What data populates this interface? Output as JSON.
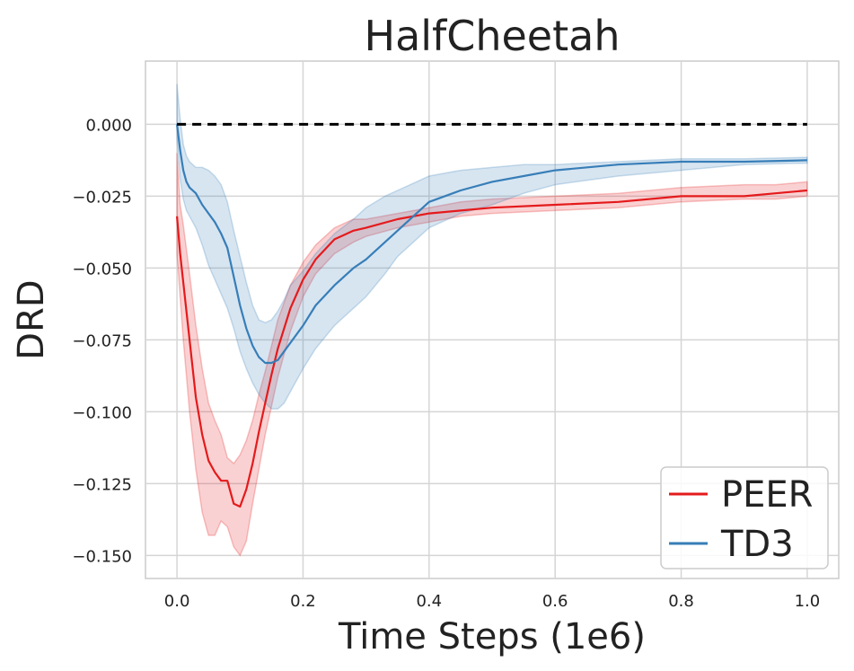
{
  "chart_data": {
    "type": "line",
    "title": "HalfCheetah",
    "xlabel": "Time Steps (1e6)",
    "ylabel": "DRD",
    "xlim": [
      -0.05,
      1.05
    ],
    "ylim": [
      -0.158,
      0.022
    ],
    "xticks": [
      0.0,
      0.2,
      0.4,
      0.6,
      0.8,
      1.0
    ],
    "xtick_labels": [
      "0.0",
      "0.2",
      "0.4",
      "0.6",
      "0.8",
      "1.0"
    ],
    "yticks": [
      0.0,
      -0.025,
      -0.05,
      -0.075,
      -0.1,
      -0.125,
      -0.15
    ],
    "ytick_labels": [
      "0.000",
      "−0.025",
      "−0.050",
      "−0.075",
      "−0.100",
      "−0.125",
      "−0.150"
    ],
    "grid": true,
    "legend_position": "bottom-right",
    "reference_line": {
      "y": 0.0,
      "x_range": [
        0.0,
        1.0
      ],
      "style": "dashed",
      "color": "#000000"
    },
    "series": [
      {
        "name": "PEER",
        "color": "#e41a1c",
        "x": [
          0.0,
          0.005,
          0.01,
          0.02,
          0.03,
          0.04,
          0.05,
          0.06,
          0.07,
          0.08,
          0.09,
          0.1,
          0.11,
          0.12,
          0.13,
          0.14,
          0.15,
          0.16,
          0.18,
          0.2,
          0.22,
          0.25,
          0.28,
          0.3,
          0.35,
          0.4,
          0.45,
          0.5,
          0.6,
          0.7,
          0.8,
          0.9,
          0.95,
          1.0
        ],
        "mean": [
          -0.032,
          -0.045,
          -0.055,
          -0.075,
          -0.095,
          -0.108,
          -0.117,
          -0.121,
          -0.124,
          -0.124,
          -0.132,
          -0.133,
          -0.127,
          -0.118,
          -0.107,
          -0.097,
          -0.087,
          -0.078,
          -0.064,
          -0.054,
          -0.047,
          -0.04,
          -0.037,
          -0.036,
          -0.033,
          -0.031,
          -0.03,
          -0.029,
          -0.028,
          -0.027,
          -0.025,
          -0.025,
          -0.024,
          -0.023
        ],
        "lower": [
          -0.045,
          -0.06,
          -0.075,
          -0.1,
          -0.12,
          -0.135,
          -0.143,
          -0.143,
          -0.138,
          -0.14,
          -0.147,
          -0.15,
          -0.145,
          -0.132,
          -0.12,
          -0.108,
          -0.098,
          -0.088,
          -0.072,
          -0.06,
          -0.052,
          -0.045,
          -0.041,
          -0.039,
          -0.036,
          -0.034,
          -0.032,
          -0.031,
          -0.03,
          -0.029,
          -0.027,
          -0.026,
          -0.026,
          -0.025
        ],
        "upper": [
          -0.01,
          -0.028,
          -0.035,
          -0.052,
          -0.07,
          -0.085,
          -0.097,
          -0.103,
          -0.108,
          -0.116,
          -0.118,
          -0.115,
          -0.11,
          -0.103,
          -0.094,
          -0.086,
          -0.077,
          -0.068,
          -0.056,
          -0.048,
          -0.042,
          -0.036,
          -0.033,
          -0.033,
          -0.031,
          -0.029,
          -0.027,
          -0.026,
          -0.025,
          -0.024,
          -0.022,
          -0.021,
          -0.021,
          -0.02
        ]
      },
      {
        "name": "TD3",
        "color": "#377eb8",
        "x": [
          0.0,
          0.005,
          0.01,
          0.015,
          0.02,
          0.03,
          0.04,
          0.05,
          0.06,
          0.07,
          0.08,
          0.09,
          0.1,
          0.11,
          0.12,
          0.13,
          0.14,
          0.15,
          0.16,
          0.17,
          0.18,
          0.2,
          0.22,
          0.25,
          0.28,
          0.3,
          0.33,
          0.35,
          0.38,
          0.4,
          0.45,
          0.5,
          0.55,
          0.6,
          0.7,
          0.8,
          0.9,
          1.0
        ],
        "mean": [
          0.0,
          -0.009,
          -0.016,
          -0.02,
          -0.022,
          -0.024,
          -0.028,
          -0.031,
          -0.034,
          -0.038,
          -0.043,
          -0.053,
          -0.063,
          -0.071,
          -0.077,
          -0.081,
          -0.083,
          -0.083,
          -0.082,
          -0.079,
          -0.076,
          -0.07,
          -0.063,
          -0.056,
          -0.05,
          -0.047,
          -0.041,
          -0.037,
          -0.031,
          -0.027,
          -0.023,
          -0.02,
          -0.018,
          -0.016,
          -0.014,
          -0.013,
          -0.013,
          -0.0125
        ],
        "lower": [
          -0.005,
          -0.019,
          -0.026,
          -0.03,
          -0.032,
          -0.036,
          -0.042,
          -0.049,
          -0.054,
          -0.059,
          -0.064,
          -0.071,
          -0.079,
          -0.085,
          -0.09,
          -0.094,
          -0.097,
          -0.099,
          -0.099,
          -0.097,
          -0.093,
          -0.085,
          -0.078,
          -0.07,
          -0.064,
          -0.06,
          -0.052,
          -0.046,
          -0.04,
          -0.036,
          -0.031,
          -0.028,
          -0.024,
          -0.021,
          -0.018,
          -0.016,
          -0.014,
          -0.0135
        ],
        "upper": [
          0.014,
          0.002,
          -0.007,
          -0.011,
          -0.013,
          -0.015,
          -0.015,
          -0.016,
          -0.018,
          -0.021,
          -0.027,
          -0.037,
          -0.046,
          -0.055,
          -0.063,
          -0.068,
          -0.069,
          -0.068,
          -0.065,
          -0.061,
          -0.056,
          -0.051,
          -0.045,
          -0.038,
          -0.033,
          -0.029,
          -0.025,
          -0.023,
          -0.02,
          -0.018,
          -0.016,
          -0.015,
          -0.014,
          -0.014,
          -0.013,
          -0.012,
          -0.012,
          -0.0115
        ]
      }
    ]
  }
}
